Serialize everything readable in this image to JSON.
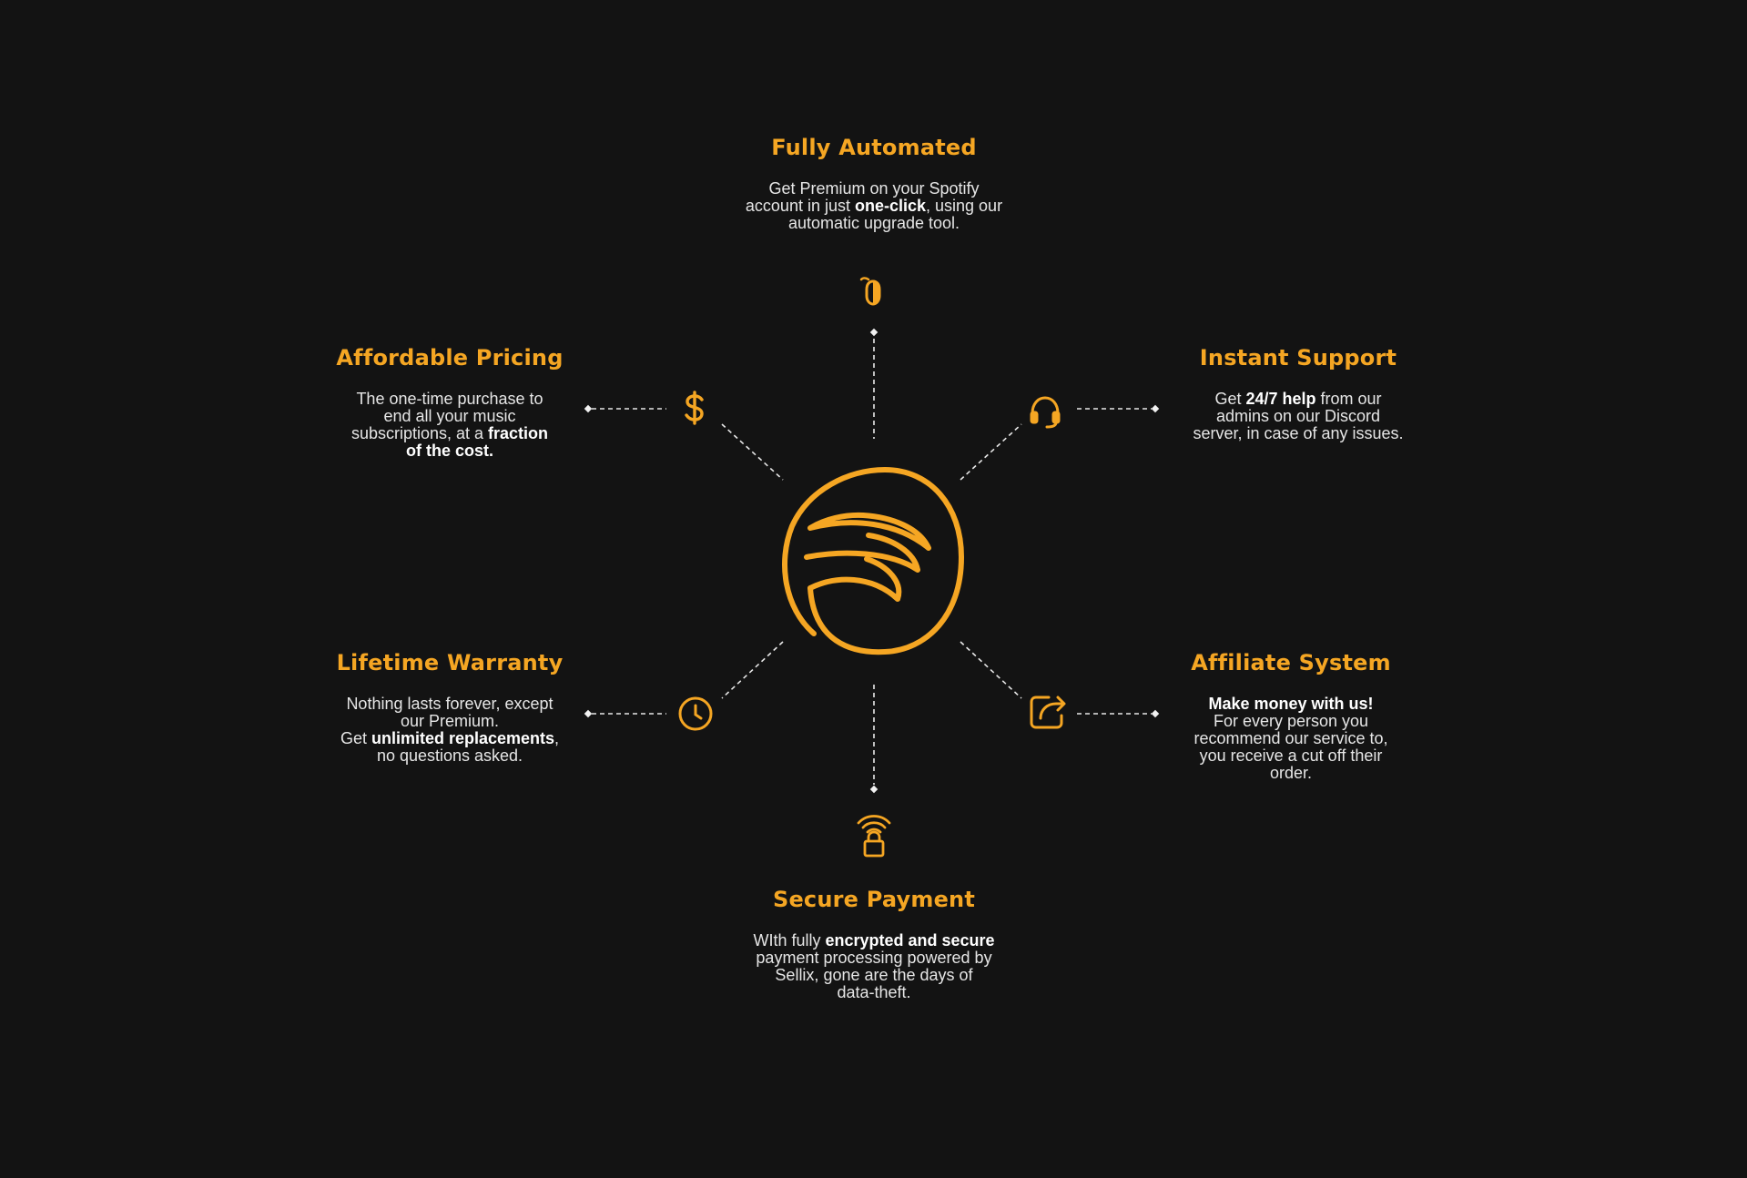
{
  "colors": {
    "background": "#131313",
    "accent": "#F5A623",
    "text": "#E6E6E6",
    "emphasis": "#FFFFFF",
    "connector": "#E8E8E8"
  },
  "logo": {
    "icon": "brand-logo-icon"
  },
  "features": {
    "fully_automated": {
      "icon": "mouse-click-icon",
      "title": "Fully Automated",
      "desc": [
        [
          {
            "t": "Get Premium on your Spotify"
          }
        ],
        [
          {
            "t": "account in just "
          },
          {
            "t": "one-click",
            "b": true
          },
          {
            "t": ", using our"
          }
        ],
        [
          {
            "t": "automatic upgrade tool."
          }
        ]
      ]
    },
    "affordable_pricing": {
      "icon": "dollar-icon",
      "title": "Affordable Pricing",
      "desc": [
        [
          {
            "t": "The one-time purchase to"
          }
        ],
        [
          {
            "t": "end all your music"
          }
        ],
        [
          {
            "t": "subscriptions, at a "
          },
          {
            "t": "fraction",
            "b": true
          }
        ],
        [
          {
            "t": "of the cost.",
            "b": true
          }
        ]
      ]
    },
    "instant_support": {
      "icon": "headset-icon",
      "title": "Instant Support",
      "desc": [
        [
          {
            "t": "Get "
          },
          {
            "t": "24/7 help",
            "b": true
          },
          {
            "t": " from our"
          }
        ],
        [
          {
            "t": "admins on our Discord"
          }
        ],
        [
          {
            "t": "server, in case of any issues."
          }
        ]
      ]
    },
    "lifetime_warranty": {
      "icon": "clock-icon",
      "title": "Lifetime Warranty",
      "desc": [
        [
          {
            "t": "Nothing lasts forever, except"
          }
        ],
        [
          {
            "t": "our Premium."
          }
        ],
        [
          {
            "t": "Get "
          },
          {
            "t": "unlimited replacements",
            "b": true
          },
          {
            "t": ","
          }
        ],
        [
          {
            "t": "no questions asked."
          }
        ]
      ]
    },
    "affiliate_system": {
      "icon": "share-icon",
      "title": "Affiliate System",
      "desc": [
        [
          {
            "t": "Make money with us!",
            "b": true
          }
        ],
        [
          {
            "t": "For every person you"
          }
        ],
        [
          {
            "t": "recommend our service to,"
          }
        ],
        [
          {
            "t": "you receive a cut off their"
          }
        ],
        [
          {
            "t": "order."
          }
        ]
      ]
    },
    "secure_payment": {
      "icon": "wireless-lock-icon",
      "title": "Secure Payment",
      "desc": [
        [
          {
            "t": "WIth fully "
          },
          {
            "t": "encrypted and secure",
            "b": true
          }
        ],
        [
          {
            "t": "payment processing powered by"
          }
        ],
        [
          {
            "t": "Sellix, gone are the days of"
          }
        ],
        [
          {
            "t": "data-theft."
          }
        ]
      ]
    }
  }
}
